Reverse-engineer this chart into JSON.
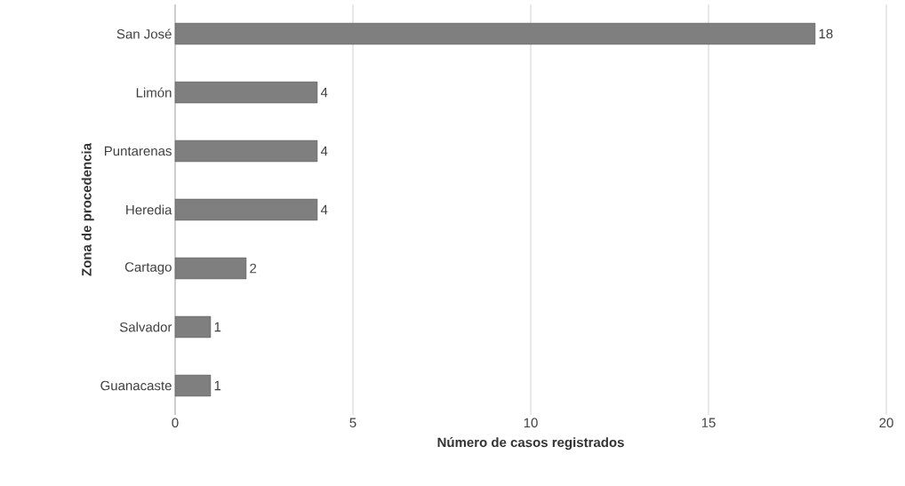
{
  "chart_data": {
    "type": "bar",
    "orientation": "horizontal",
    "xlabel": "Número de casos registrados",
    "ylabel": "Zona de procedencia",
    "categories": [
      "San José",
      "Limón",
      "Puntarenas",
      "Heredia",
      "Cartago",
      "Salvador",
      "Guanacaste"
    ],
    "values": [
      18,
      4,
      4,
      4,
      2,
      1,
      1
    ],
    "color": "#7f7f7f",
    "xlim": [
      0,
      20
    ],
    "xticks": [
      0,
      5,
      10,
      15,
      20
    ],
    "grid": "x",
    "data_labels": true
  }
}
